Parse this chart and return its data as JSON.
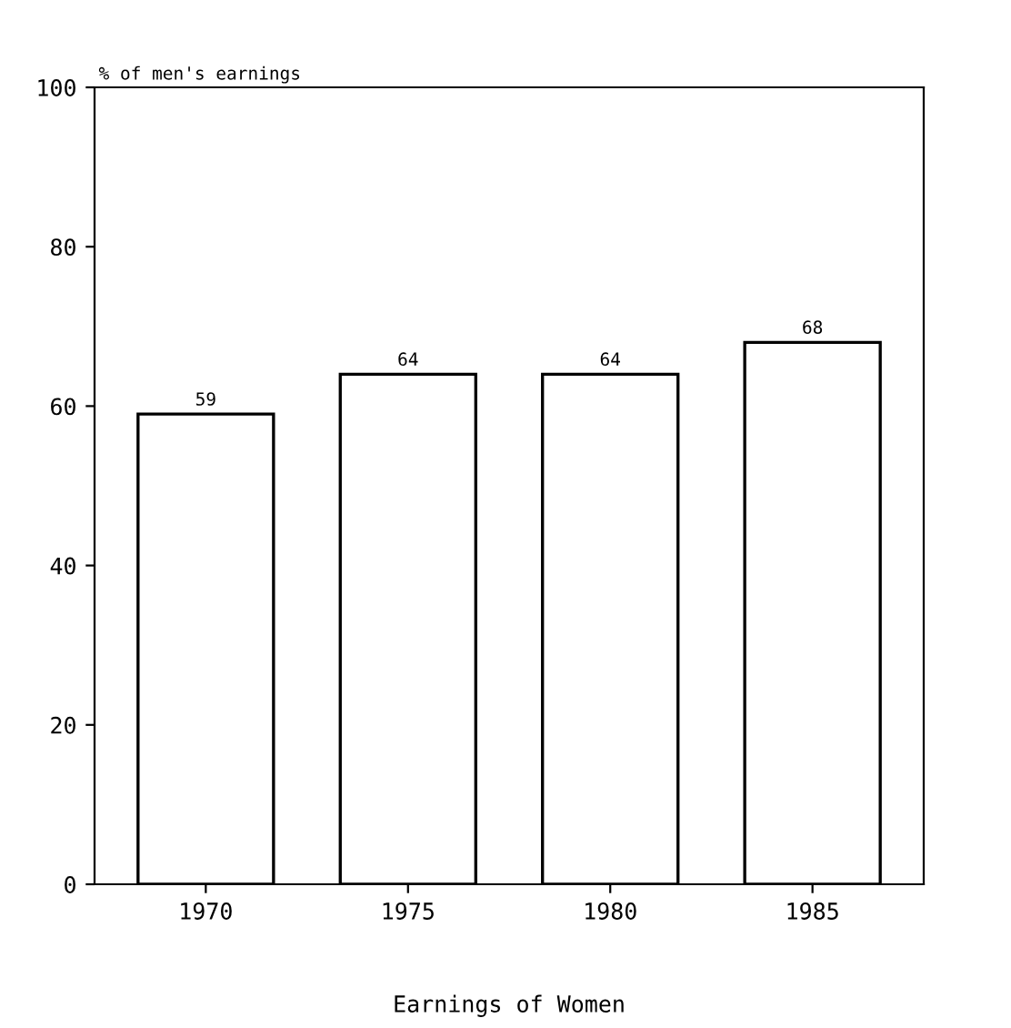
{
  "chart_data": {
    "type": "bar",
    "ylabel": "% of men's earnings",
    "xlabel": "Earnings of Women",
    "categories": [
      "1970",
      "1975",
      "1980",
      "1985"
    ],
    "values": [
      59,
      64,
      64,
      68
    ],
    "color": "#ffffff",
    "ylim": [
      0,
      100
    ],
    "yticks": [
      0,
      20,
      40,
      60,
      80,
      100
    ],
    "data_labels": true,
    "grid": false,
    "legend": false
  }
}
